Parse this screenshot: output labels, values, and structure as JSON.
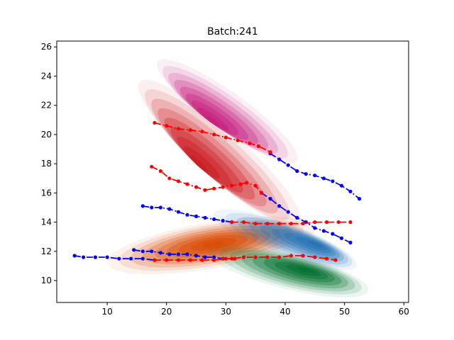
{
  "chart_data": {
    "type": "line",
    "title": "Batch:241",
    "xlabel": "",
    "ylabel": "",
    "xlim": [
      1.5,
      60.8
    ],
    "ylim": [
      8.5,
      26.4
    ],
    "xticks": [
      10,
      20,
      30,
      40,
      50,
      60
    ],
    "yticks": [
      10,
      12,
      14,
      16,
      18,
      20,
      22,
      24,
      26
    ],
    "grid": false,
    "legend": "none",
    "density_regions": [
      {
        "colormap": "purples_reds",
        "color": "#c51b7d",
        "center": [
          30.5,
          20.5
        ],
        "extent": [
          [
            18.5,
            25.0
          ],
          [
            42.0,
            18.2
          ]
        ],
        "peak": [
          27.5,
          21.0
        ]
      },
      {
        "colormap": "reds",
        "color": "#cb181d",
        "center": [
          27.0,
          17.8
        ],
        "extent": [
          [
            15.5,
            23.6
          ],
          [
            42.5,
            13.8
          ]
        ],
        "peak": [
          25.5,
          18.0
        ]
      },
      {
        "colormap": "oranges",
        "color": "#d94801",
        "center": [
          28.0,
          12.4
        ],
        "extent": [
          [
            10.0,
            11.2
          ],
          [
            45.0,
            13.6
          ]
        ],
        "peak": [
          28.0,
          12.5
        ]
      },
      {
        "colormap": "blues",
        "color": "#2171b5",
        "center": [
          42.0,
          12.9
        ],
        "extent": [
          [
            28.0,
            14.6
          ],
          [
            52.0,
            11.0
          ]
        ],
        "peak": [
          45.0,
          12.5
        ]
      },
      {
        "colormap": "greens",
        "color": "#006d2c",
        "center": [
          41.0,
          10.8
        ],
        "extent": [
          [
            27.0,
            12.0
          ],
          [
            54.0,
            9.3
          ]
        ],
        "peak": [
          43.5,
          10.7
        ]
      }
    ],
    "series": [
      {
        "color": "#0000ff",
        "style": "dashdot",
        "values": [
          [
            37.5,
            18.7
          ],
          [
            39,
            18.3
          ],
          [
            40.5,
            17.9
          ],
          [
            42,
            17.5
          ],
          [
            43.5,
            17.3
          ],
          [
            45,
            17.2
          ],
          [
            46.5,
            17.0
          ],
          [
            48,
            16.8
          ],
          [
            49.5,
            16.5
          ],
          [
            51,
            16.1
          ],
          [
            52.5,
            15.6
          ]
        ]
      },
      {
        "color": "#0000ff",
        "style": "dashdot",
        "values": [
          [
            36,
            16.0
          ],
          [
            37.5,
            15.6
          ],
          [
            39,
            15.1
          ],
          [
            40.5,
            14.7
          ],
          [
            42,
            14.3
          ],
          [
            43.5,
            14.0
          ],
          [
            45,
            13.6
          ],
          [
            46.5,
            13.4
          ],
          [
            48,
            13.2
          ],
          [
            49.5,
            12.9
          ],
          [
            51,
            12.6
          ]
        ]
      },
      {
        "color": "#0000ff",
        "style": "dashdot",
        "values": [
          [
            16,
            15.1
          ],
          [
            17.5,
            15.0
          ],
          [
            19,
            15.0
          ],
          [
            20.5,
            14.9
          ],
          [
            22,
            14.7
          ],
          [
            23.5,
            14.5
          ],
          [
            25,
            14.4
          ],
          [
            26.5,
            14.3
          ],
          [
            28,
            14.2
          ],
          [
            29.5,
            14.1
          ],
          [
            31,
            14.0
          ]
        ]
      },
      {
        "color": "#0000ff",
        "style": "dashdot",
        "values": [
          [
            14.5,
            12.1
          ],
          [
            16,
            12.0
          ],
          [
            17.5,
            12.0
          ],
          [
            19,
            11.9
          ],
          [
            20.5,
            11.8
          ],
          [
            22,
            11.8
          ],
          [
            23.5,
            11.8
          ],
          [
            25,
            11.7
          ],
          [
            26.5,
            11.6
          ],
          [
            28,
            11.6
          ],
          [
            29.5,
            11.5
          ]
        ]
      },
      {
        "color": "#0000ff",
        "style": "dashdot",
        "values": [
          [
            4.5,
            11.7
          ],
          [
            6,
            11.6
          ],
          [
            8,
            11.6
          ],
          [
            10,
            11.6
          ],
          [
            12,
            11.5
          ],
          [
            14,
            11.5
          ],
          [
            16,
            11.5
          ],
          [
            18,
            11.4
          ]
        ]
      },
      {
        "color": "#ff0000",
        "style": "dashdot",
        "values": [
          [
            18,
            20.8
          ],
          [
            20,
            20.6
          ],
          [
            22,
            20.4
          ],
          [
            24,
            20.3
          ],
          [
            26,
            20.2
          ],
          [
            28,
            20.0
          ],
          [
            30,
            19.8
          ],
          [
            32,
            19.6
          ],
          [
            34,
            19.4
          ],
          [
            35.5,
            19.2
          ],
          [
            37.5,
            18.8
          ]
        ]
      },
      {
        "color": "#ff0000",
        "style": "dashdot",
        "values": [
          [
            17.5,
            17.8
          ],
          [
            19,
            17.5
          ],
          [
            20.5,
            17.0
          ],
          [
            22,
            16.8
          ],
          [
            23.5,
            16.6
          ],
          [
            25,
            16.4
          ],
          [
            26.5,
            16.2
          ],
          [
            28,
            16.3
          ],
          [
            29.5,
            16.4
          ],
          [
            31,
            16.5
          ],
          [
            32.5,
            16.6
          ],
          [
            33.5,
            16.7
          ],
          [
            35,
            16.5
          ],
          [
            36,
            16.0
          ]
        ]
      },
      {
        "color": "#ff0000",
        "style": "dashdot",
        "values": [
          [
            31,
            14.0
          ],
          [
            33,
            14.0
          ],
          [
            35,
            13.9
          ],
          [
            37,
            13.9
          ],
          [
            39,
            13.9
          ],
          [
            41,
            13.9
          ],
          [
            43,
            13.9
          ],
          [
            45,
            14.0
          ],
          [
            47,
            14.0
          ],
          [
            49,
            14.0
          ],
          [
            51,
            14.0
          ]
        ]
      },
      {
        "color": "#ff0000",
        "style": "dashdot",
        "values": [
          [
            29.5,
            11.5
          ],
          [
            31,
            11.5
          ],
          [
            33,
            11.6
          ],
          [
            35,
            11.6
          ],
          [
            37,
            11.6
          ],
          [
            39,
            11.6
          ],
          [
            41,
            11.7
          ],
          [
            43,
            11.7
          ],
          [
            45,
            11.6
          ],
          [
            47,
            11.5
          ],
          [
            48.5,
            11.4
          ]
        ]
      },
      {
        "color": "#ff0000",
        "style": "dashdot",
        "values": [
          [
            18,
            11.4
          ],
          [
            20,
            11.4
          ],
          [
            22,
            11.4
          ],
          [
            24,
            11.4
          ],
          [
            26,
            11.4
          ],
          [
            28,
            11.4
          ],
          [
            30,
            11.5
          ],
          [
            31.5,
            11.5
          ]
        ]
      }
    ]
  }
}
